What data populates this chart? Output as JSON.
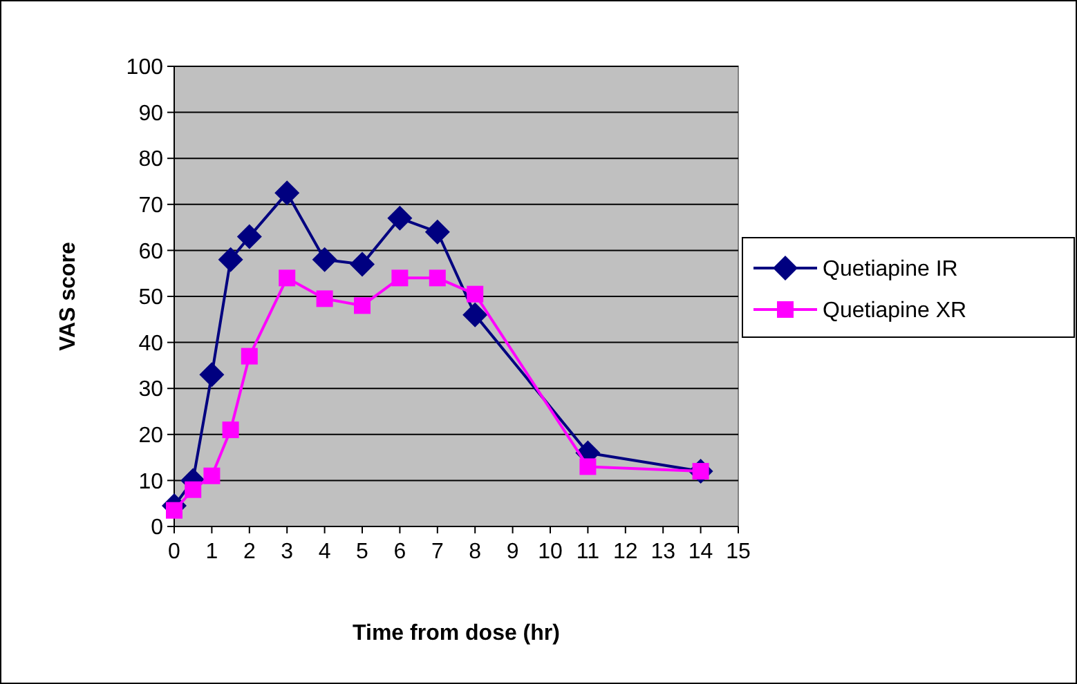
{
  "chart_data": {
    "type": "line",
    "xlabel": "Time from dose (hr)",
    "ylabel": "VAS score",
    "x": [
      0,
      0.5,
      1,
      1.5,
      2,
      3,
      4,
      5,
      6,
      7,
      8,
      11,
      14
    ],
    "xlim": [
      0,
      15
    ],
    "xticks": [
      0,
      1,
      2,
      3,
      4,
      5,
      6,
      7,
      8,
      9,
      10,
      11,
      12,
      13,
      14,
      15
    ],
    "ylim": [
      0,
      100
    ],
    "yticks": [
      0,
      10,
      20,
      30,
      40,
      50,
      60,
      70,
      80,
      90,
      100
    ],
    "grid": "y",
    "legend": "right",
    "series": [
      {
        "name": "Quetiapine IR",
        "color": "#000080",
        "marker": "diamond",
        "values": [
          4.5,
          10,
          33,
          58,
          63,
          72.5,
          58,
          57,
          67,
          64,
          46,
          16,
          12
        ]
      },
      {
        "name": "Quetiapine XR",
        "color": "#ff00ff",
        "marker": "square",
        "values": [
          3.5,
          8,
          11,
          21,
          37,
          54,
          49.5,
          48,
          54,
          54,
          50.5,
          13,
          12
        ]
      }
    ]
  }
}
